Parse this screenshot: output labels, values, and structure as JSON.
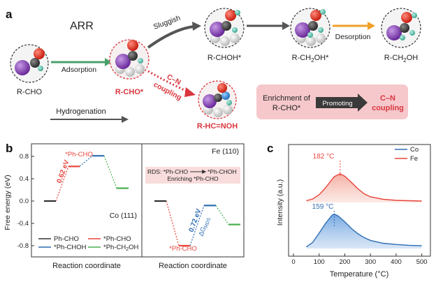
{
  "panel_a": {
    "label": "a",
    "title": "ARR",
    "reactant": "R-CHO",
    "adsorption": "Adsorption",
    "adsorbed": "R-CHO*",
    "sluggish": "Sluggish",
    "intermediate1": "R-CHOH*",
    "intermediate2_parts": [
      "R-CH",
      "2",
      "OH*"
    ],
    "desorption": "Desorption",
    "product_parts": [
      "R-CH",
      "2",
      "OH"
    ],
    "cn_coupling_lines": [
      "C–N",
      "coupling"
    ],
    "oxime": "R-HC=NOH",
    "hydrogenation": "Hydrogenation",
    "box_lines": [
      "Enrichment of",
      "R-CHO*"
    ],
    "promoting": "Promoting",
    "box_result": [
      "C–N",
      "coupling"
    ]
  },
  "panel_b": {
    "label": "b",
    "ylabel": "Free energy (eV)",
    "left_xlabel": "Reaction coordinate",
    "right_xlabel": "Reaction coordinate",
    "left_surface": "Co (111)",
    "right_surface": "Fe (110)",
    "left_marker": "*Ph-CHO",
    "right_marker": "*Ph-CHO",
    "left_barrier": "0.62 eV",
    "right_barrier": "0.72 eV",
    "right_dg": "ΔG",
    "right_dg_sub": "RDS",
    "rds_box_line1_parts": [
      "RDS: *Ph-CHO",
      "*Ph-CHOH"
    ],
    "rds_box_line2": "Enriching *Ph-CHO",
    "legend": [
      {
        "label": "Ph-CHO",
        "color": "#333333"
      },
      {
        "label": "*Ph-CHO",
        "color": "#e8453c"
      },
      {
        "label": "*Ph-CHOH",
        "color": "#2e6db4"
      },
      {
        "label_parts": [
          "*Ph-CH",
          "2",
          "OH"
        ],
        "color": "#4caf50"
      }
    ]
  },
  "panel_c": {
    "label": "c",
    "ylabel": "Intensity (a.u.)",
    "xlabel": "Temperature (°C)",
    "legend": [
      {
        "label": "Co",
        "color": "#2e6db4"
      },
      {
        "label": "Fe",
        "color": "#e8453c"
      }
    ],
    "peak_fe": "182 °C",
    "peak_co": "159 °C"
  },
  "chart_data": [
    {
      "type": "line",
      "ylabel": "Free energy (eV)",
      "xlabel": "Reaction coordinate",
      "yticks": [
        "-0.8",
        "-0.4",
        "0.0",
        "0.4",
        "0.8"
      ],
      "ylim": [
        -0.9,
        1.1
      ],
      "grid": false,
      "series": [
        {
          "name": "Ph-CHO",
          "color": "#333333",
          "values": [
            0.0
          ]
        },
        {
          "name": "*Ph-CHO",
          "color": "#e8453c",
          "values": [
            0.62
          ]
        },
        {
          "name": "*Ph-CHOH",
          "color": "#2e6db4",
          "values": [
            0.81
          ]
        },
        {
          "name": "*Ph-CH2OH",
          "color": "#4caf50",
          "values": [
            0.23
          ]
        }
      ]
    },
    {
      "type": "line",
      "xlabel": "Reaction coordinate",
      "ylim": [
        -0.9,
        1.1
      ],
      "grid": false,
      "series": [
        {
          "name": "Ph-CHO",
          "color": "#333333",
          "values": [
            0.0
          ]
        },
        {
          "name": "*Ph-CHO",
          "color": "#e8453c",
          "values": [
            -0.8
          ]
        },
        {
          "name": "*Ph-CHOH",
          "color": "#2e6db4",
          "values": [
            -0.08
          ]
        },
        {
          "name": "*Ph-CH2OH",
          "color": "#4caf50",
          "values": [
            -0.42
          ]
        }
      ]
    },
    {
      "type": "area",
      "xlabel": "Temperature (°C)",
      "ylabel": "Intensity (a.u.)",
      "xlim": [
        0,
        550
      ],
      "xticks": [
        "0",
        "100",
        "200",
        "300",
        "400",
        "500"
      ],
      "legend_position": "top-right",
      "grid": false,
      "x": [
        50,
        75,
        100,
        125,
        150,
        159,
        175,
        182,
        200,
        225,
        250,
        275,
        300,
        350,
        400,
        450,
        500
      ],
      "series": [
        {
          "name": "Fe",
          "color": "#e8453c",
          "values": [
            0.05,
            0.1,
            0.22,
            0.42,
            0.66,
            0.74,
            0.8,
            0.82,
            0.75,
            0.58,
            0.4,
            0.25,
            0.16,
            0.09,
            0.06,
            0.05,
            0.04
          ]
        },
        {
          "name": "Co",
          "color": "#2e6db4",
          "values": [
            0.04,
            0.15,
            0.38,
            0.62,
            0.82,
            0.85,
            0.8,
            0.76,
            0.66,
            0.5,
            0.37,
            0.27,
            0.2,
            0.13,
            0.1,
            0.08,
            0.07
          ]
        }
      ]
    }
  ]
}
